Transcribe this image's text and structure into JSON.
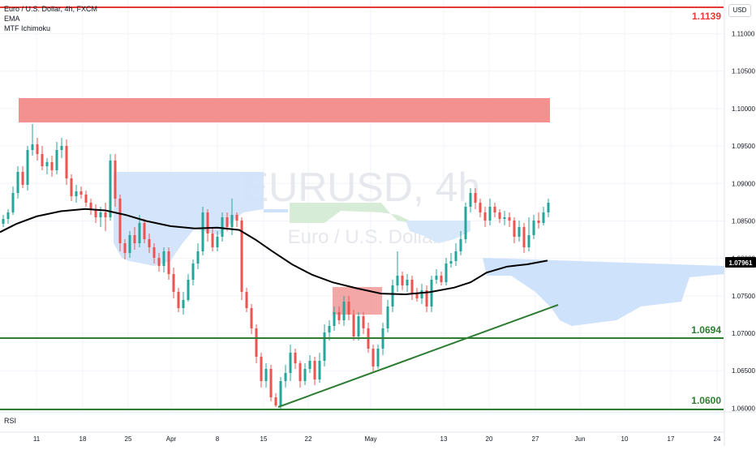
{
  "header": {
    "symbol_line": "Euro / U.S. Dollar, 4h, FXCM",
    "indicator_1": "EMA",
    "indicator_2": "MTF Ichimoku"
  },
  "watermark": {
    "ticker": "EURUSD, 4h",
    "name": "Euro / U.S. Dollar"
  },
  "currency_badge": "USD",
  "rsi_label": "RSI",
  "levels": {
    "top": "1.1139",
    "mid": "1.0694",
    "bottom": "1.0600",
    "current_price": "1.07961"
  },
  "colors": {
    "resistance_red": "#e53935",
    "support_green": "#2e7d32",
    "candle_up": "#26a69a",
    "candle_down": "#ef5350",
    "cloud_blue": "#bbdefb",
    "cloud_green": "#c8e6c9",
    "ema": "#000000"
  },
  "chart_data": {
    "type": "candlestick",
    "yaxis_ticks": [
      "1.11000",
      "1.10500",
      "1.10000",
      "1.09500",
      "1.09000",
      "1.08500",
      "1.08000",
      "1.07500",
      "1.07000",
      "1.06500",
      "1.06000"
    ],
    "xaxis_ticks": [
      "11",
      "18",
      "25",
      "Apr",
      "8",
      "15",
      "22",
      "May",
      "13",
      "20",
      "27",
      "Jun",
      "10",
      "17",
      "24"
    ],
    "ylim": [
      1.0595,
      1.1145
    ],
    "horizontal_levels": [
      1.1139,
      1.0694,
      1.06
    ],
    "supply_zone": [
      1.0985,
      1.1015
    ],
    "demand_zone": [
      1.0725,
      1.076
    ],
    "ema_points": [
      [
        0,
        1.0835
      ],
      [
        20,
        1.0846
      ],
      [
        45,
        1.0856
      ],
      [
        75,
        1.0863
      ],
      [
        105,
        1.0866
      ],
      [
        130,
        1.0864
      ],
      [
        155,
        1.0858
      ],
      [
        180,
        1.085
      ],
      [
        210,
        1.0843
      ],
      [
        240,
        1.084
      ],
      [
        268,
        1.0841
      ],
      [
        295,
        1.0838
      ],
      [
        315,
        1.0825
      ],
      [
        335,
        1.081
      ],
      [
        360,
        1.0792
      ],
      [
        385,
        1.0778
      ],
      [
        410,
        1.0768
      ],
      [
        440,
        1.076
      ],
      [
        470,
        1.0753
      ],
      [
        500,
        1.0752
      ],
      [
        530,
        1.0755
      ],
      [
        560,
        1.0761
      ],
      [
        580,
        1.0768
      ],
      [
        600,
        1.0781
      ],
      [
        625,
        1.0789
      ],
      [
        650,
        1.0792
      ],
      [
        675,
        1.0797
      ]
    ]
  }
}
